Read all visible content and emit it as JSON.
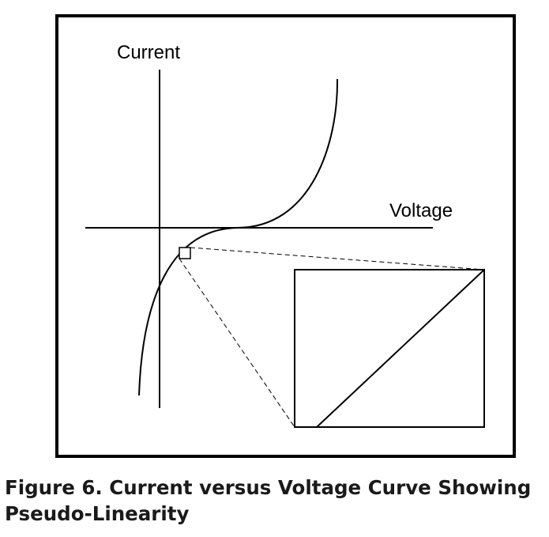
{
  "diagram": {
    "y_axis_label": "Current",
    "x_axis_label": "Voltage"
  },
  "caption": "Figure 6. Current versus Voltage Curve Showing Pseudo-Linearity"
}
